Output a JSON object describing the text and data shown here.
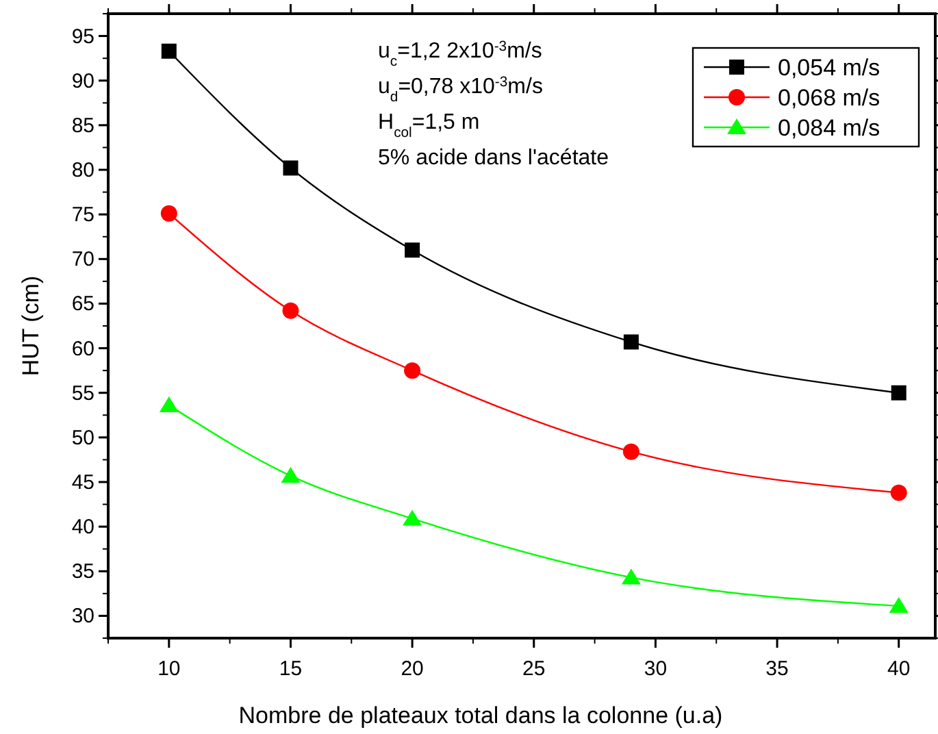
{
  "chart_data": {
    "type": "line",
    "xlabel": "Nombre de plateaux total dans la colonne (u.a)",
    "ylabel": "HUT (cm)",
    "x": [
      10,
      15,
      20,
      29,
      40
    ],
    "series": [
      {
        "name": "0,054 m/s",
        "color": "#000000",
        "marker": "square",
        "values": [
          93.3,
          80.2,
          71.0,
          60.7,
          55.0
        ]
      },
      {
        "name": "0,068 m/s",
        "color": "#ff0000",
        "marker": "circle",
        "values": [
          75.1,
          64.2,
          57.5,
          48.4,
          43.8
        ]
      },
      {
        "name": "0,084 m/s",
        "color": "#00ff00",
        "marker": "triangle",
        "values": [
          53.6,
          45.7,
          40.9,
          34.3,
          31.1
        ]
      }
    ],
    "annotations": [
      "u$_{c}$=1,2 2x10$^{-3}$m/s",
      "u$_{d}$=0,78 x10$^{-3}$m/s",
      "H$_{col}$=1,5 m",
      "5% acide dans l'acétate"
    ],
    "xlim": [
      7.5,
      41.5
    ],
    "xticks": [
      10,
      15,
      20,
      25,
      30,
      35,
      40
    ],
    "ylim": [
      27.5,
      97.5
    ],
    "yticks": [
      30,
      35,
      40,
      45,
      50,
      55,
      60,
      65,
      70,
      75,
      80,
      85,
      90,
      95
    ],
    "grid": false,
    "legend": "top right"
  }
}
